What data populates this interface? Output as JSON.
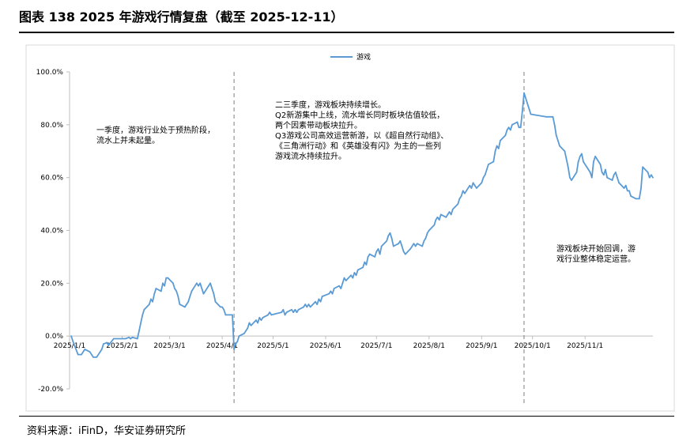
{
  "title": "图表 138 2025 年游戏行情复盘（截至 2025-12-11）",
  "source": "资料来源：iFinD，华安证券研究所",
  "chart_data": {
    "type": "line",
    "series": [
      {
        "name": "游戏",
        "color": "#5B9BD5",
        "points": [
          [
            "2025-01-02",
            0
          ],
          [
            "2025-01-03",
            -2
          ],
          [
            "2025-01-06",
            -7
          ],
          [
            "2025-01-08",
            -7
          ],
          [
            "2025-01-10",
            -5
          ],
          [
            "2025-01-13",
            -6
          ],
          [
            "2025-01-15",
            -8
          ],
          [
            "2025-01-17",
            -8
          ],
          [
            "2025-01-20",
            -5
          ],
          [
            "2025-01-21",
            -3
          ],
          [
            "2025-01-23",
            -2.5
          ],
          [
            "2025-01-24",
            -3.5
          ],
          [
            "2025-01-27",
            -1
          ],
          [
            "2025-02-03",
            -1
          ],
          [
            "2025-02-05",
            -0.5
          ],
          [
            "2025-02-06",
            -1
          ],
          [
            "2025-02-07",
            -0.5
          ],
          [
            "2025-02-10",
            -1
          ],
          [
            "2025-02-11",
            2
          ],
          [
            "2025-02-13",
            8
          ],
          [
            "2025-02-14",
            10
          ],
          [
            "2025-02-17",
            12
          ],
          [
            "2025-02-18",
            14
          ],
          [
            "2025-02-19",
            13
          ],
          [
            "2025-02-20",
            16
          ],
          [
            "2025-02-21",
            18
          ],
          [
            "2025-02-24",
            17
          ],
          [
            "2025-02-25",
            20
          ],
          [
            "2025-02-26",
            19
          ],
          [
            "2025-02-27",
            22
          ],
          [
            "2025-02-28",
            22
          ],
          [
            "2025-03-03",
            20
          ],
          [
            "2025-03-04",
            18
          ],
          [
            "2025-03-05",
            17
          ],
          [
            "2025-03-06",
            15
          ],
          [
            "2025-03-07",
            12
          ],
          [
            "2025-03-10",
            11
          ],
          [
            "2025-03-11",
            12
          ],
          [
            "2025-03-12",
            13
          ],
          [
            "2025-03-13",
            15
          ],
          [
            "2025-03-14",
            17
          ],
          [
            "2025-03-17",
            20
          ],
          [
            "2025-03-18",
            19
          ],
          [
            "2025-03-19",
            20
          ],
          [
            "2025-03-20",
            18
          ],
          [
            "2025-03-21",
            16
          ],
          [
            "2025-03-24",
            19
          ],
          [
            "2025-03-25",
            20
          ],
          [
            "2025-03-26",
            18
          ],
          [
            "2025-03-27",
            16
          ],
          [
            "2025-03-28",
            13
          ],
          [
            "2025-03-31",
            11
          ],
          [
            "2025-04-01",
            11
          ],
          [
            "2025-04-02",
            10
          ],
          [
            "2025-04-03",
            8
          ],
          [
            "2025-04-07",
            8
          ],
          [
            "2025-04-08",
            -5
          ],
          [
            "2025-04-09",
            -3
          ],
          [
            "2025-04-10",
            -2
          ],
          [
            "2025-04-11",
            0
          ],
          [
            "2025-04-14",
            1
          ],
          [
            "2025-04-15",
            2
          ],
          [
            "2025-04-16",
            3
          ],
          [
            "2025-04-17",
            5
          ],
          [
            "2025-04-18",
            4
          ],
          [
            "2025-04-21",
            6
          ],
          [
            "2025-04-22",
            5
          ],
          [
            "2025-04-23",
            7
          ],
          [
            "2025-04-24",
            6
          ],
          [
            "2025-04-25",
            7
          ],
          [
            "2025-04-28",
            8
          ],
          [
            "2025-04-29",
            9
          ],
          [
            "2025-04-30",
            8
          ],
          [
            "2025-05-06",
            9
          ],
          [
            "2025-05-07",
            10
          ],
          [
            "2025-05-08",
            8
          ],
          [
            "2025-05-09",
            9
          ],
          [
            "2025-05-12",
            10
          ],
          [
            "2025-05-13",
            9
          ],
          [
            "2025-05-14",
            10
          ],
          [
            "2025-05-15",
            9
          ],
          [
            "2025-05-16",
            10
          ],
          [
            "2025-05-19",
            11
          ],
          [
            "2025-05-20",
            12
          ],
          [
            "2025-05-21",
            11
          ],
          [
            "2025-05-22",
            12
          ],
          [
            "2025-05-23",
            11
          ],
          [
            "2025-05-26",
            13
          ],
          [
            "2025-05-27",
            12
          ],
          [
            "2025-05-28",
            14
          ],
          [
            "2025-05-29",
            13
          ],
          [
            "2025-05-30",
            15
          ],
          [
            "2025-06-03",
            16
          ],
          [
            "2025-06-04",
            17
          ],
          [
            "2025-06-05",
            16
          ],
          [
            "2025-06-06",
            18
          ],
          [
            "2025-06-09",
            19
          ],
          [
            "2025-06-10",
            18
          ],
          [
            "2025-06-11",
            20
          ],
          [
            "2025-06-12",
            22
          ],
          [
            "2025-06-13",
            21
          ],
          [
            "2025-06-16",
            23
          ],
          [
            "2025-06-17",
            22
          ],
          [
            "2025-06-18",
            24
          ],
          [
            "2025-06-19",
            23
          ],
          [
            "2025-06-20",
            25
          ],
          [
            "2025-06-23",
            26
          ],
          [
            "2025-06-24",
            28
          ],
          [
            "2025-06-25",
            27
          ],
          [
            "2025-06-26",
            30
          ],
          [
            "2025-06-27",
            31
          ],
          [
            "2025-06-30",
            30
          ],
          [
            "2025-07-01",
            32
          ],
          [
            "2025-07-02",
            33
          ],
          [
            "2025-07-03",
            31
          ],
          [
            "2025-07-04",
            34
          ],
          [
            "2025-07-07",
            36
          ],
          [
            "2025-07-08",
            38
          ],
          [
            "2025-07-09",
            39
          ],
          [
            "2025-07-10",
            37
          ],
          [
            "2025-07-11",
            34
          ],
          [
            "2025-07-14",
            35
          ],
          [
            "2025-07-15",
            36
          ],
          [
            "2025-07-16",
            34
          ],
          [
            "2025-07-17",
            32
          ],
          [
            "2025-07-18",
            31
          ],
          [
            "2025-07-21",
            33
          ],
          [
            "2025-07-22",
            34
          ],
          [
            "2025-07-23",
            35
          ],
          [
            "2025-07-24",
            34
          ],
          [
            "2025-07-25",
            35
          ],
          [
            "2025-07-28",
            34
          ],
          [
            "2025-07-29",
            36
          ],
          [
            "2025-07-30",
            37
          ],
          [
            "2025-07-31",
            39
          ],
          [
            "2025-08-01",
            40
          ],
          [
            "2025-08-04",
            42
          ],
          [
            "2025-08-05",
            44
          ],
          [
            "2025-08-06",
            45
          ],
          [
            "2025-08-07",
            44
          ],
          [
            "2025-08-08",
            46
          ],
          [
            "2025-08-11",
            45
          ],
          [
            "2025-08-12",
            46
          ],
          [
            "2025-08-13",
            47
          ],
          [
            "2025-08-14",
            46
          ],
          [
            "2025-08-15",
            48
          ],
          [
            "2025-08-18",
            50
          ],
          [
            "2025-08-19",
            52
          ],
          [
            "2025-08-20",
            53
          ],
          [
            "2025-08-21",
            55
          ],
          [
            "2025-08-22",
            54
          ],
          [
            "2025-08-25",
            57
          ],
          [
            "2025-08-26",
            56
          ],
          [
            "2025-08-27",
            58
          ],
          [
            "2025-08-28",
            57
          ],
          [
            "2025-08-29",
            56
          ],
          [
            "2025-09-01",
            58
          ],
          [
            "2025-09-02",
            60
          ],
          [
            "2025-09-03",
            61
          ],
          [
            "2025-09-04",
            63
          ],
          [
            "2025-09-05",
            65
          ],
          [
            "2025-09-08",
            66
          ],
          [
            "2025-09-09",
            70
          ],
          [
            "2025-09-10",
            72
          ],
          [
            "2025-09-11",
            71
          ],
          [
            "2025-09-12",
            74
          ],
          [
            "2025-09-15",
            76
          ],
          [
            "2025-09-16",
            78
          ],
          [
            "2025-09-17",
            79
          ],
          [
            "2025-09-18",
            78
          ],
          [
            "2025-09-19",
            80
          ],
          [
            "2025-09-22",
            81
          ],
          [
            "2025-09-23",
            79
          ],
          [
            "2025-09-24",
            79
          ],
          [
            "2025-09-25",
            85
          ],
          [
            "2025-09-26",
            92
          ],
          [
            "2025-09-29",
            86
          ],
          [
            "2025-09-30",
            84
          ],
          [
            "2025-10-09",
            83
          ],
          [
            "2025-10-10",
            83
          ],
          [
            "2025-10-13",
            83
          ],
          [
            "2025-10-14",
            80
          ],
          [
            "2025-10-15",
            76
          ],
          [
            "2025-10-16",
            74
          ],
          [
            "2025-10-17",
            72
          ],
          [
            "2025-10-20",
            70
          ],
          [
            "2025-10-21",
            67
          ],
          [
            "2025-10-22",
            64
          ],
          [
            "2025-10-23",
            60
          ],
          [
            "2025-10-24",
            59
          ],
          [
            "2025-10-27",
            62
          ],
          [
            "2025-10-28",
            66
          ],
          [
            "2025-10-29",
            68
          ],
          [
            "2025-10-30",
            69
          ],
          [
            "2025-10-31",
            66
          ],
          [
            "2025-11-03",
            63
          ],
          [
            "2025-11-04",
            62
          ],
          [
            "2025-11-05",
            60
          ],
          [
            "2025-11-06",
            66
          ],
          [
            "2025-11-07",
            68
          ],
          [
            "2025-11-10",
            65
          ],
          [
            "2025-11-11",
            62
          ],
          [
            "2025-11-12",
            61
          ],
          [
            "2025-11-13",
            63
          ],
          [
            "2025-11-14",
            60
          ],
          [
            "2025-11-17",
            59
          ],
          [
            "2025-11-18",
            61
          ],
          [
            "2025-11-19",
            62
          ],
          [
            "2025-11-20",
            60
          ],
          [
            "2025-11-21",
            58
          ],
          [
            "2025-11-24",
            56
          ],
          [
            "2025-11-25",
            57
          ],
          [
            "2025-11-26",
            55
          ],
          [
            "2025-11-27",
            55
          ],
          [
            "2025-11-28",
            53
          ],
          [
            "2025-12-01",
            52
          ],
          [
            "2025-12-02",
            52
          ],
          [
            "2025-12-03",
            52
          ],
          [
            "2025-12-04",
            56
          ],
          [
            "2025-12-05",
            64
          ],
          [
            "2025-12-08",
            62
          ],
          [
            "2025-12-09",
            60
          ],
          [
            "2025-12-10",
            61
          ],
          [
            "2025-12-11",
            60
          ]
        ]
      }
    ],
    "x_tick_labels": [
      "2025/1/1",
      "2025/2/1",
      "2025/3/1",
      "2025/4/1",
      "2025/5/1",
      "2025/6/1",
      "2025/7/1",
      "2025/8/1",
      "2025/9/1",
      "2025/10/1",
      "2025/11/1"
    ],
    "x_tick_dates": [
      "2025-01-01",
      "2025-02-01",
      "2025-03-01",
      "2025-04-01",
      "2025-05-01",
      "2025-06-01",
      "2025-07-01",
      "2025-08-01",
      "2025-09-01",
      "2025-10-01",
      "2025-11-01"
    ],
    "xlim": [
      "2025-01-01",
      "2025-12-11"
    ],
    "ylim": [
      -20,
      100
    ],
    "y_ticks": [
      -20,
      0,
      20,
      40,
      60,
      80,
      100
    ],
    "y_tick_labels": [
      "-20.0%",
      "0.0%",
      "20.0%",
      "40.0%",
      "60.0%",
      "80.0%",
      "100.0%"
    ],
    "legend_position": "top-center",
    "grid": false,
    "phase_dividers": [
      "2025-04-08",
      "2025-09-26"
    ],
    "annotations": [
      {
        "id": "q1",
        "lines": [
          "一季度，游戏行业处于预热阶段，",
          "流水上并未起量。"
        ]
      },
      {
        "id": "q23",
        "lines": [
          "二三季度，游戏板块持续增长。",
          "Q2新游集中上线，流水增长同时板块估值较低，",
          "两个因素带动板块拉升。",
          "Q3游戏公司高效运营新游，以《超自然行动组》、",
          "《三角洲行动》和《英雄没有闪》为主的一些列",
          "游戏流水持续拉升。"
        ]
      },
      {
        "id": "q4",
        "lines": [
          "游戏板块开始回调，游",
          "戏行业整体稳定运营。"
        ]
      }
    ]
  }
}
